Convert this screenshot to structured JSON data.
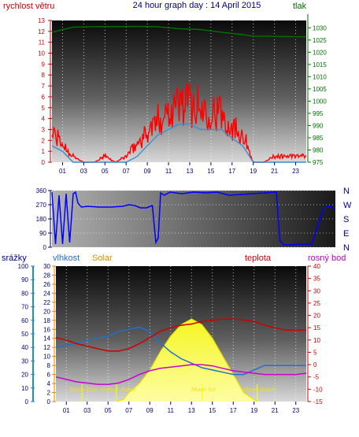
{
  "page": {
    "title": "24 hour graph day : 14 April 2015"
  },
  "colors": {
    "wind": "#ff0000",
    "wind_avg": "#3a8fd0",
    "pressure": "#007000",
    "direction": "#0000ff",
    "humidity": "#2070d0",
    "solar": "#ffff00",
    "temperature": "#cc0000",
    "dewpoint": "#cc00cc",
    "rain": "#1e8ad6",
    "axis_blue": "#000080",
    "axis_red": "#cc0000",
    "axis_green": "#007000",
    "axis_magenta": "#c000c0",
    "solar_label": "#e08a00"
  },
  "chart_data": [
    {
      "type": "line",
      "title": "24 hour graph day : 14 April 2015",
      "xlabel": "",
      "x_ticks": [
        "01",
        "03",
        "05",
        "07",
        "09",
        "11",
        "13",
        "15",
        "17",
        "19",
        "21",
        "23"
      ],
      "left_axis": {
        "label": "rychlost větru",
        "ylim": [
          0,
          13
        ],
        "ticks": [
          0,
          1,
          2,
          3,
          4,
          5,
          6,
          7,
          8,
          9,
          10,
          11,
          12,
          13
        ]
      },
      "right_axis": {
        "label": "tlak",
        "ylim": [
          975,
          1033
        ],
        "ticks": [
          975,
          980,
          985,
          990,
          995,
          1000,
          1005,
          1010,
          1015,
          1020,
          1025,
          1030
        ]
      },
      "series": [
        {
          "name": "rychlost větru",
          "axis": "left",
          "x": [
            0,
            1,
            2,
            3,
            4,
            5,
            6,
            7,
            8,
            9,
            10,
            11,
            12,
            13,
            14,
            15,
            16,
            17,
            18,
            19,
            20,
            21,
            22,
            23,
            24
          ],
          "values": [
            2.5,
            1.5,
            0.5,
            0,
            0,
            0.5,
            0,
            0.5,
            1.5,
            2.5,
            3.5,
            4.5,
            5,
            5,
            4.5,
            4.5,
            4,
            3,
            2.5,
            0,
            0,
            0.5,
            0.5,
            0.5,
            0.5
          ]
        },
        {
          "name": "",
          "axis": "left",
          "x": [
            0,
            1,
            2,
            3,
            4,
            5,
            6,
            7,
            8,
            9,
            10,
            11,
            12,
            13,
            14,
            15,
            16,
            17,
            18,
            19,
            20,
            21,
            22,
            23,
            24
          ],
          "values": [
            1.5,
            1,
            0,
            0,
            0,
            0,
            0,
            0,
            0.5,
            1.5,
            2.5,
            3,
            3.5,
            3.5,
            3,
            3,
            3,
            2.2,
            1.5,
            0,
            0,
            0,
            0,
            0,
            0
          ]
        },
        {
          "name": "tlak",
          "axis": "right",
          "x": [
            0,
            2,
            4,
            6,
            8,
            10,
            12,
            14,
            16,
            18,
            19,
            20,
            22,
            24
          ],
          "values": [
            1028.2,
            1030.3,
            1030.5,
            1030.5,
            1030.6,
            1030.4,
            1029.6,
            1029.3,
            1028.2,
            1027.2,
            1026.6,
            1026.6,
            1026.4,
            1026.3
          ]
        }
      ]
    },
    {
      "type": "line",
      "x_ticks": [],
      "left_axis": {
        "label": "",
        "ylim": [
          0,
          360
        ],
        "ticks": [
          0,
          90,
          180,
          270,
          360
        ]
      },
      "right_axis": {
        "label": "",
        "ticks": [
          "N",
          "W",
          "S",
          "E",
          "N"
        ]
      },
      "series": [
        {
          "name": "",
          "x": [
            0,
            0.3,
            0.6,
            0.9,
            1.2,
            1.5,
            1.8,
            2,
            2.2,
            2.5,
            3,
            4,
            5,
            6,
            6.5,
            7,
            7.5,
            8,
            8.5,
            8.8,
            9,
            9.2,
            9.5,
            10,
            11,
            12,
            13,
            14,
            15,
            16,
            17,
            18,
            19,
            19.3,
            19.6,
            20,
            21,
            22,
            23,
            23.5,
            24
          ],
          "values": [
            350,
            20,
            330,
            20,
            340,
            30,
            340,
            350,
            280,
            255,
            260,
            255,
            255,
            260,
            270,
            265,
            250,
            250,
            265,
            30,
            60,
            345,
            330,
            350,
            340,
            350,
            345,
            350,
            330,
            335,
            340,
            345,
            350,
            45,
            15,
            15,
            20,
            20,
            250,
            260,
            245
          ]
        }
      ]
    },
    {
      "type": "line",
      "x_ticks": [
        "01",
        "03",
        "05",
        "07",
        "09",
        "11",
        "13",
        "15",
        "17",
        "19",
        "21",
        "23"
      ],
      "axis_labels": {
        "rain": "srážky",
        "humidity": "vlhkost",
        "solar": "Solar",
        "temperature": "teplota",
        "dewpoint": "rosný bod"
      },
      "axes": {
        "rain": {
          "ylim": [
            0,
            100
          ],
          "ticks": [
            0,
            10,
            20,
            30,
            40,
            50,
            60,
            70,
            80,
            90,
            100
          ]
        },
        "solar": {
          "ylim": [
            0,
            30
          ],
          "ticks": [
            0,
            2,
            4,
            6,
            8,
            10,
            12,
            14,
            16,
            18,
            20,
            22,
            24,
            26,
            28,
            30
          ]
        },
        "temperature": {
          "ylim": [
            -15,
            40
          ],
          "ticks": [
            -15,
            -10,
            -5,
            0,
            5,
            10,
            15,
            20,
            25,
            30,
            35,
            40
          ]
        }
      },
      "series": [
        {
          "name": "vlhkost",
          "axis": "solar",
          "x": [
            0,
            1,
            2,
            3,
            4,
            5,
            6,
            7,
            8,
            9,
            10,
            11,
            12,
            13,
            14,
            15,
            16,
            17,
            18,
            19,
            20,
            21,
            22,
            23,
            24
          ],
          "values": [
            12,
            12.5,
            13,
            13.5,
            14,
            14.5,
            15.5,
            16,
            16.5,
            15.5,
            13,
            11,
            9.5,
            8.5,
            7.5,
            7,
            6.5,
            6,
            6,
            7,
            8,
            8,
            8,
            8,
            8
          ]
        },
        {
          "name": "teplota",
          "axis": "temperature",
          "x": [
            0,
            1,
            2,
            3,
            4,
            5,
            6,
            7,
            8,
            9,
            10,
            11,
            12,
            13,
            14,
            15,
            16,
            17,
            18,
            19,
            20,
            21,
            22,
            23,
            24
          ],
          "values": [
            11,
            10,
            8.5,
            7.5,
            6.5,
            5.5,
            5.5,
            6.5,
            8.5,
            11,
            13.5,
            15,
            16,
            16.5,
            17.5,
            18,
            18.5,
            18.5,
            18.2,
            17.5,
            16,
            15,
            14,
            14,
            14
          ]
        },
        {
          "name": "rosný bod",
          "axis": "temperature",
          "x": [
            0,
            1,
            2,
            3,
            4,
            5,
            6,
            7,
            8,
            9,
            10,
            11,
            12,
            13,
            14,
            15,
            16,
            17,
            18,
            19,
            20,
            21,
            22,
            23,
            24
          ],
          "values": [
            -5,
            -6,
            -7,
            -7.5,
            -8,
            -8,
            -7.5,
            -6,
            -4,
            -2.5,
            -1.5,
            -1,
            -0.5,
            0,
            0,
            -0.5,
            -1.5,
            -2.5,
            -3,
            -3.5,
            -4,
            -4,
            -4,
            -4,
            -3.5
          ]
        },
        {
          "name": "Solar",
          "axis": "solar",
          "x": [
            5.8,
            6.5,
            7,
            8,
            9,
            10,
            11,
            12,
            13,
            14,
            15,
            16,
            17,
            18,
            19.3
          ],
          "values": [
            0,
            0.5,
            2,
            4,
            7,
            11,
            14.5,
            17,
            18.3,
            17,
            14,
            10,
            6,
            2,
            0
          ]
        }
      ],
      "markers": [
        {
          "label": "Moon Rise",
          "x": 2.5
        },
        {
          "label": "východ slunce",
          "x": 5.8
        },
        {
          "label": "Moon Set",
          "x": 14
        },
        {
          "label": "západ slunce",
          "x": 19.3
        }
      ]
    }
  ]
}
